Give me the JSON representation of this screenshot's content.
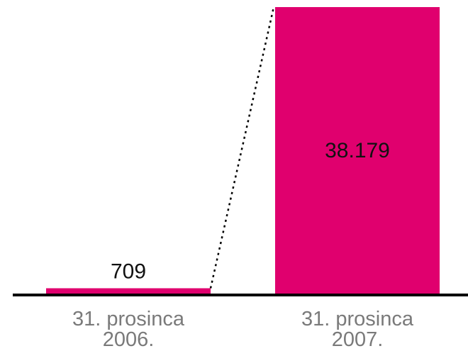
{
  "chart_data": {
    "type": "bar",
    "categories": [
      [
        "31. prosinca",
        "2006."
      ],
      [
        "31. prosinca",
        "2007."
      ]
    ],
    "values": [
      709,
      38179
    ],
    "value_labels": [
      "709",
      "38.179"
    ],
    "bar_color": "#e0006e",
    "connector": "dotted",
    "ylim": [
      0,
      38179
    ]
  }
}
